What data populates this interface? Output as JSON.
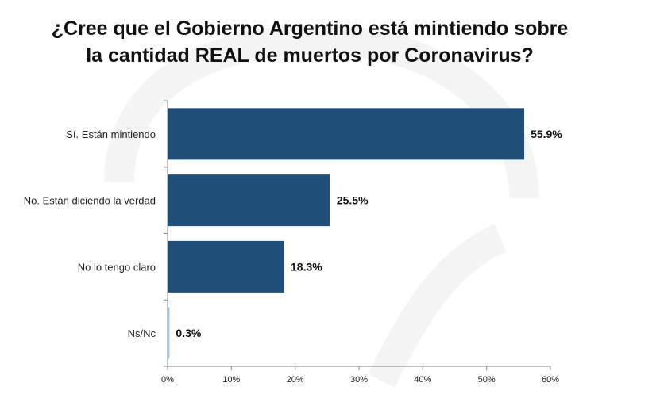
{
  "title_lines": [
    "¿Cree que el Gobierno Argentino está mintiendo sobre",
    "la cantidad REAL de muertos por Coronavirus?"
  ],
  "chart_data": {
    "type": "bar",
    "orientation": "horizontal",
    "title": "¿Cree que el Gobierno Argentino está mintiendo sobre la cantidad REAL de muertos por Coronavirus?",
    "categories": [
      "Sí. Están mintiendo",
      "No. Están diciendo la verdad",
      "No lo tengo claro",
      "Ns/Nc"
    ],
    "values": [
      55.9,
      25.5,
      18.3,
      0.3
    ],
    "value_labels": [
      "55.9%",
      "25.5%",
      "18.3%",
      "0.3%"
    ],
    "xlim": [
      0,
      60
    ],
    "xticks": [
      0,
      10,
      20,
      30,
      40,
      50,
      60
    ],
    "xtick_labels": [
      "0%",
      "10%",
      "20%",
      "30%",
      "40%",
      "50%",
      "60%"
    ],
    "xlabel": "",
    "ylabel": "",
    "grid": false,
    "bar_color": "#1f4e79",
    "small_bar_color": "#9dc3e6"
  }
}
